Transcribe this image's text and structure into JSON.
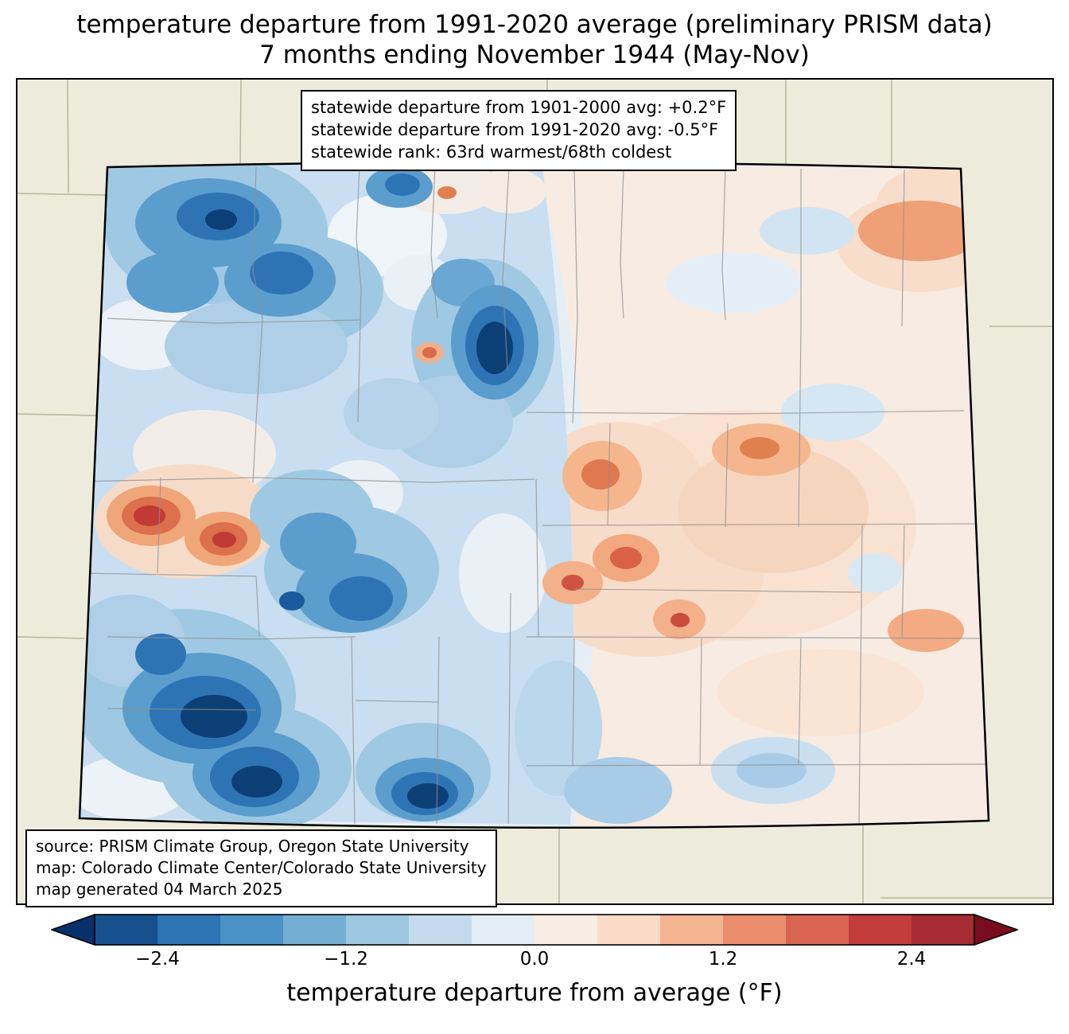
{
  "title": {
    "line1": "temperature departure from 1991-2020 average (preliminary PRISM data)",
    "line2": "7 months ending November 1944 (May-Nov)"
  },
  "stats_box": {
    "lines": [
      "statewide departure from 1901-2000 avg: +0.2°F",
      "statewide departure from 1991-2020 avg: -0.5°F",
      "statewide rank: 63rd warmest/68th coldest"
    ]
  },
  "source_box": {
    "lines": [
      "source: PRISM Climate Group, Oregon State University",
      "map: Colorado Climate Center/Colorado State University",
      "map generated 04 March 2025"
    ]
  },
  "colorbar": {
    "label": "temperature departure from average (°F)",
    "ticks": [
      "−2.4",
      "−1.2",
      "0.0",
      "1.2",
      "2.4"
    ],
    "tick_values": [
      -2.4,
      -1.2,
      0.0,
      1.2,
      2.4
    ],
    "range": [
      -2.8,
      2.8
    ],
    "arrow_left_color": "#08306b",
    "arrow_right_color": "#7a0c20",
    "segment_colors": [
      "#16508f",
      "#2e74b5",
      "#4a92c6",
      "#74afd3",
      "#9cc7e0",
      "#c3dbec",
      "#e2edf5",
      "#f9ece2",
      "#fbdbc8",
      "#f5b491",
      "#ea8e6e",
      "#d96552",
      "#c23d3c",
      "#a62a31"
    ]
  },
  "map": {
    "background_color": "#edecdc",
    "cold_palette": [
      "#e6eef5",
      "#c9def0",
      "#9fc8e3",
      "#5b9dcd",
      "#2e74b5",
      "#0d3f77"
    ],
    "warm_palette": [
      "#f7ebe2",
      "#f8dcca",
      "#f5b68e",
      "#e07950",
      "#bf3b34"
    ]
  }
}
